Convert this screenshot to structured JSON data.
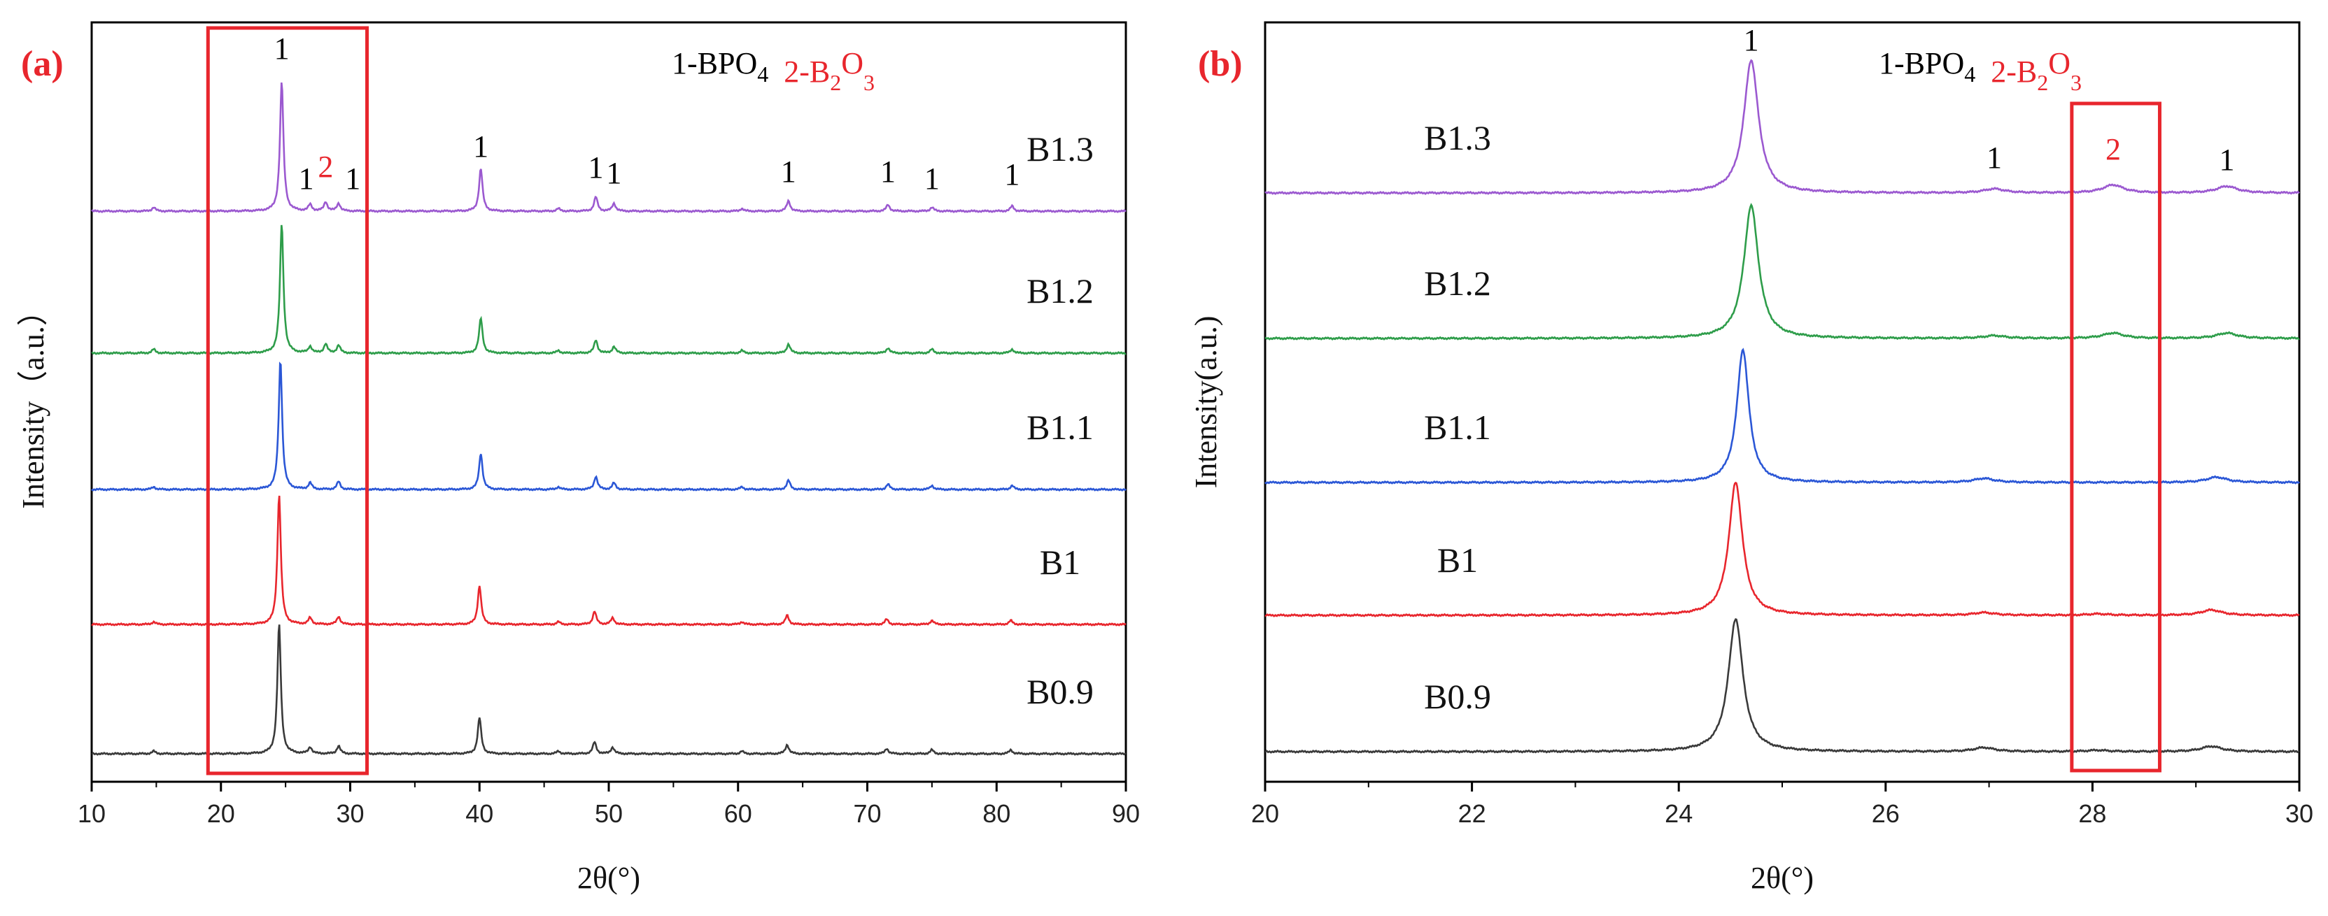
{
  "chart_data": [
    {
      "panel": "(a)",
      "type": "line",
      "xlabel": "2θ(°)",
      "ylabel": "Intensity（a.u.）",
      "xlim": [
        10,
        90
      ],
      "xticks": [
        10,
        20,
        30,
        40,
        50,
        60,
        70,
        80,
        90
      ],
      "legend": {
        "items": [
          {
            "number": "1",
            "text": "-BPO",
            "sub": "4",
            "color": "#000000"
          },
          {
            "number": "2",
            "text": "-B",
            "sub": "2",
            "text2": "O",
            "sub2": "3",
            "color": "#e8262d"
          }
        ]
      },
      "series": [
        {
          "name": "B1.3",
          "color": "#9b59d0",
          "peaks": [
            [
              14.8,
              0.03
            ],
            [
              24.7,
              1.0
            ],
            [
              26.9,
              0.05
            ],
            [
              28.1,
              0.07
            ],
            [
              29.1,
              0.06
            ],
            [
              40.1,
              0.33
            ],
            [
              46.1,
              0.02
            ],
            [
              49.0,
              0.11
            ],
            [
              50.4,
              0.06
            ],
            [
              60.3,
              0.02
            ],
            [
              63.9,
              0.08
            ],
            [
              71.6,
              0.05
            ],
            [
              75.0,
              0.03
            ],
            [
              81.2,
              0.04
            ]
          ]
        },
        {
          "name": "B1.2",
          "color": "#2e9d4a",
          "peaks": [
            [
              14.8,
              0.03
            ],
            [
              24.7,
              1.0
            ],
            [
              26.9,
              0.05
            ],
            [
              28.1,
              0.07
            ],
            [
              29.1,
              0.06
            ],
            [
              40.1,
              0.27
            ],
            [
              46.1,
              0.02
            ],
            [
              49.0,
              0.1
            ],
            [
              50.4,
              0.05
            ],
            [
              60.3,
              0.02
            ],
            [
              63.9,
              0.07
            ],
            [
              71.6,
              0.04
            ],
            [
              75.0,
              0.03
            ],
            [
              81.2,
              0.03
            ]
          ]
        },
        {
          "name": "B1.1",
          "color": "#2b57d6",
          "peaks": [
            [
              14.8,
              0.02
            ],
            [
              24.6,
              1.0
            ],
            [
              26.9,
              0.05
            ],
            [
              29.1,
              0.06
            ],
            [
              40.1,
              0.28
            ],
            [
              46.1,
              0.02
            ],
            [
              49.0,
              0.1
            ],
            [
              50.4,
              0.05
            ],
            [
              60.3,
              0.02
            ],
            [
              63.9,
              0.07
            ],
            [
              71.6,
              0.04
            ],
            [
              75.0,
              0.03
            ],
            [
              81.2,
              0.03
            ]
          ]
        },
        {
          "name": "B1",
          "color": "#e8262d",
          "peaks": [
            [
              14.8,
              0.02
            ],
            [
              24.5,
              1.0
            ],
            [
              26.9,
              0.05
            ],
            [
              29.1,
              0.06
            ],
            [
              40.0,
              0.3
            ],
            [
              46.1,
              0.02
            ],
            [
              48.9,
              0.1
            ],
            [
              50.3,
              0.05
            ],
            [
              60.3,
              0.02
            ],
            [
              63.8,
              0.07
            ],
            [
              71.5,
              0.04
            ],
            [
              75.0,
              0.03
            ],
            [
              81.1,
              0.03
            ]
          ]
        },
        {
          "name": "B0.9",
          "color": "#3a3a3a",
          "peaks": [
            [
              14.8,
              0.02
            ],
            [
              24.5,
              1.0
            ],
            [
              26.9,
              0.05
            ],
            [
              29.1,
              0.06
            ],
            [
              40.0,
              0.28
            ],
            [
              46.1,
              0.02
            ],
            [
              48.9,
              0.09
            ],
            [
              50.3,
              0.05
            ],
            [
              60.3,
              0.02
            ],
            [
              63.8,
              0.07
            ],
            [
              71.5,
              0.04
            ],
            [
              75.0,
              0.03
            ],
            [
              81.1,
              0.03
            ]
          ]
        }
      ],
      "annotations": [
        {
          "text": "1",
          "x": 24.7,
          "color": "#000000"
        },
        {
          "text": "1",
          "x": 26.6,
          "color": "#000000"
        },
        {
          "text": "2",
          "x": 28.1,
          "color": "#e8262d"
        },
        {
          "text": "1",
          "x": 30.2,
          "color": "#000000"
        },
        {
          "text": "1",
          "x": 40.1,
          "color": "#000000"
        },
        {
          "text": "1",
          "x": 49.0,
          "color": "#000000"
        },
        {
          "text": "1",
          "x": 50.4,
          "color": "#000000"
        },
        {
          "text": "1",
          "x": 63.9,
          "color": "#000000"
        },
        {
          "text": "1",
          "x": 71.6,
          "color": "#000000"
        },
        {
          "text": "1",
          "x": 75.0,
          "color": "#000000"
        },
        {
          "text": "1",
          "x": 81.2,
          "color": "#000000"
        }
      ],
      "highlight_box": {
        "x_range": [
          19.0,
          31.3
        ],
        "color": "#e8262d"
      }
    },
    {
      "panel": "(b)",
      "type": "line",
      "xlabel": "2θ(°)",
      "ylabel": "Intensity(a.u.)",
      "xlim": [
        20,
        30
      ],
      "xticks": [
        20,
        22,
        24,
        26,
        28,
        30
      ],
      "legend": {
        "items": [
          {
            "number": "1",
            "text": "-BPO",
            "sub": "4",
            "color": "#000000"
          },
          {
            "number": "2",
            "text": "-B",
            "sub": "2",
            "text2": "O",
            "sub2": "3",
            "color": "#e8262d"
          }
        ]
      },
      "series": [
        {
          "name": "B1.3",
          "color": "#9b59d0",
          "peaks": [
            [
              24.7,
              1.0,
              0.085
            ],
            [
              27.05,
              0.03,
              0.12
            ],
            [
              28.2,
              0.06,
              0.12
            ],
            [
              29.3,
              0.05,
              0.12
            ]
          ]
        },
        {
          "name": "B1.2",
          "color": "#2e9d4a",
          "peaks": [
            [
              24.7,
              1.0,
              0.085
            ],
            [
              27.05,
              0.02,
              0.12
            ],
            [
              28.2,
              0.04,
              0.12
            ],
            [
              29.3,
              0.04,
              0.12
            ]
          ]
        },
        {
          "name": "B1.1",
          "color": "#2b57d6",
          "peaks": [
            [
              24.62,
              1.0,
              0.07
            ],
            [
              26.95,
              0.03,
              0.12
            ],
            [
              29.2,
              0.04,
              0.12
            ]
          ]
        },
        {
          "name": "B1",
          "color": "#e8262d",
          "peaks": [
            [
              24.55,
              1.0,
              0.08
            ],
            [
              26.95,
              0.02,
              0.12
            ],
            [
              28.05,
              0.01,
              0.12
            ],
            [
              29.15,
              0.04,
              0.12
            ]
          ]
        },
        {
          "name": "B0.9",
          "color": "#3a3a3a",
          "peaks": [
            [
              24.55,
              1.0,
              0.085
            ],
            [
              26.95,
              0.03,
              0.12
            ],
            [
              28.05,
              0.01,
              0.12
            ],
            [
              29.15,
              0.04,
              0.12
            ]
          ]
        }
      ],
      "annotations": [
        {
          "text": "1",
          "x": 24.7,
          "color": "#000000"
        },
        {
          "text": "1",
          "x": 27.05,
          "color": "#000000"
        },
        {
          "text": "2",
          "x": 28.2,
          "color": "#e8262d"
        },
        {
          "text": "1",
          "x": 29.3,
          "color": "#000000"
        }
      ],
      "highlight_box": {
        "x_range": [
          27.8,
          28.65
        ],
        "color": "#e8262d"
      }
    }
  ]
}
